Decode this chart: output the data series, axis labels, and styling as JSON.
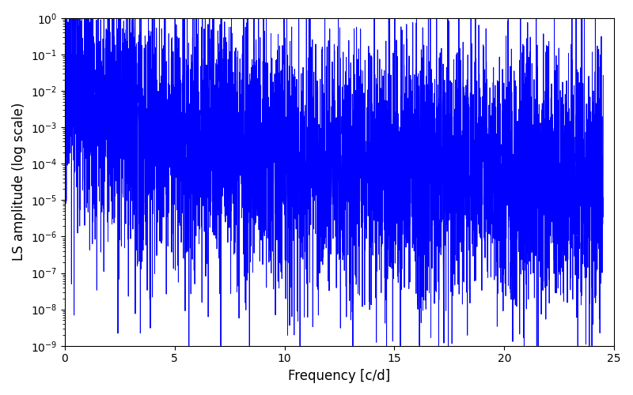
{
  "xlabel": "Frequency [c/d]",
  "ylabel": "LS amplitude (log scale)",
  "line_color": "#0000ff",
  "line_width": 0.7,
  "xlim": [
    0,
    25
  ],
  "ylim_log": [
    -9,
    0
  ],
  "freq_max": 24.5,
  "n_points": 5000,
  "seed": 17,
  "background_color": "#ffffff",
  "figsize": [
    8.0,
    5.0
  ],
  "dpi": 100
}
